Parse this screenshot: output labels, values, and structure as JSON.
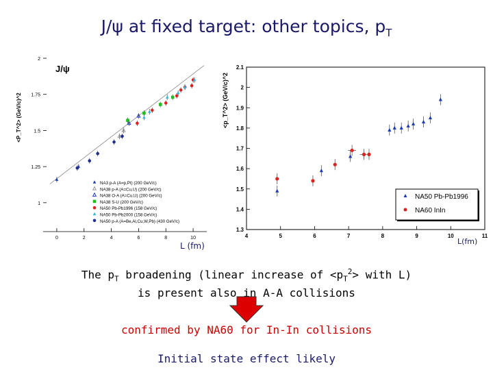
{
  "slide": {
    "title_main": "J/ψ at fixed target: other topics, p",
    "title_sub": "T",
    "left_xlabel": "L (fm)",
    "right_xlabel": "L(fm)",
    "line1_a": "The p",
    "line1_sub": "T",
    "line1_b": " broadening (linear increase of <p",
    "line1_sub2": "T",
    "line1_sup": "2",
    "line1_c": "> with L)",
    "line2": "is present also in A-A collisions",
    "confirm": "confirmed by NA60 for In-In collisions",
    "initial": "Initial state effect likely",
    "arrow_color": "#dd0000"
  },
  "chart_data": [
    {
      "type": "scatter",
      "title": "J/ψ",
      "xlabel": "L (fm)",
      "ylabel": "<P_T^2> (GeV/c)^2",
      "xlim": [
        -1,
        11
      ],
      "ylim": [
        0.8,
        2.0
      ],
      "xticks": [
        "0",
        "2",
        "4",
        "6",
        "8",
        "10"
      ],
      "yticks": [
        "1",
        "1.25",
        "1.5",
        "1.75",
        "2"
      ],
      "fit_line": [
        [
          -0.5,
          1.13
        ],
        [
          10.8,
          1.95
        ]
      ],
      "series": [
        {
          "name": "NA3 p-A (A=p,Pt) (200 GeV/c)",
          "color": "#1f3bb3",
          "marker": "triangle",
          "x": [
            0.0,
            1.6
          ],
          "y": [
            1.16,
            1.25
          ]
        },
        {
          "name": "NA38 p-A (A=Cu,U) (200 GeV/c)",
          "color": "#999999",
          "marker": "triangle-open",
          "x": [
            4.6,
            4.9
          ],
          "y": [
            1.46,
            1.5
          ]
        },
        {
          "name": "NA38 O-A (A=Cu,U) (200 GeV/c)",
          "color": "#1f3bb3",
          "marker": "triangle-open",
          "x": [
            5.3,
            6.0
          ],
          "y": [
            1.55,
            1.6
          ]
        },
        {
          "name": "NA38 S-U (200 GeV/c)",
          "color": "#22bb22",
          "marker": "square",
          "x": [
            5.2,
            6.4,
            7.6,
            8.5
          ],
          "y": [
            1.57,
            1.62,
            1.68,
            1.73
          ]
        },
        {
          "name": "NA50 Pb-Pb1996 (158 GeV/c)",
          "color": "#dd2222",
          "marker": "circle",
          "x": [
            5.9,
            7.0,
            8.0,
            8.8,
            9.1,
            9.4,
            9.9,
            10.0
          ],
          "y": [
            1.55,
            1.64,
            1.69,
            1.74,
            1.78,
            1.8,
            1.81,
            1.85
          ]
        },
        {
          "name": "NA50 Pb-Pb2000 (158 GeV/c)",
          "color": "#33b7e0",
          "marker": "triangle",
          "x": [
            6.4,
            6.8,
            8.1,
            8.9,
            9.4,
            10.1
          ],
          "y": [
            1.59,
            1.63,
            1.73,
            1.76,
            1.8,
            1.85
          ]
        },
        {
          "name": "NA50 p-A (A=Be,Al,Cu,W,Pb) (430 GeV/c)",
          "color": "#1f2f90",
          "marker": "circle",
          "x": [
            1.5,
            2.4,
            3.0,
            4.2,
            4.8
          ],
          "y": [
            1.24,
            1.29,
            1.34,
            1.42,
            1.46
          ]
        }
      ]
    },
    {
      "type": "scatter",
      "title": "",
      "xlabel": "L(fm)",
      "ylabel": "<p_T^2> (GeV/c)^2",
      "xlim": [
        4,
        11
      ],
      "ylim": [
        1.3,
        2.1
      ],
      "xticks": [
        "4",
        "5",
        "6",
        "7",
        "8",
        "9",
        "10",
        "11"
      ],
      "yticks": [
        "1.3",
        "1.4",
        "1.5",
        "1.6",
        "1.7",
        "1.8",
        "1.9",
        "2",
        "2.1"
      ],
      "legend_position": "bottom-right",
      "series": [
        {
          "name": "NA50 Pb-Pb1996",
          "color": "#1f3bb3",
          "marker": "triangle",
          "x": [
            4.9,
            6.2,
            7.05,
            8.2,
            8.35,
            8.55,
            8.75,
            8.9,
            9.2,
            9.4,
            9.7
          ],
          "y": [
            1.49,
            1.59,
            1.66,
            1.79,
            1.8,
            1.8,
            1.81,
            1.82,
            1.83,
            1.85,
            1.94
          ]
        },
        {
          "name": "NA60 InIn",
          "color": "#dd2222",
          "marker": "circle",
          "x": [
            4.9,
            5.95,
            6.6,
            7.1,
            7.45,
            7.6
          ],
          "y": [
            1.55,
            1.54,
            1.62,
            1.69,
            1.67,
            1.67
          ],
          "xerr": [
            0,
            0,
            0,
            0.12,
            0.12,
            0
          ]
        }
      ]
    }
  ]
}
